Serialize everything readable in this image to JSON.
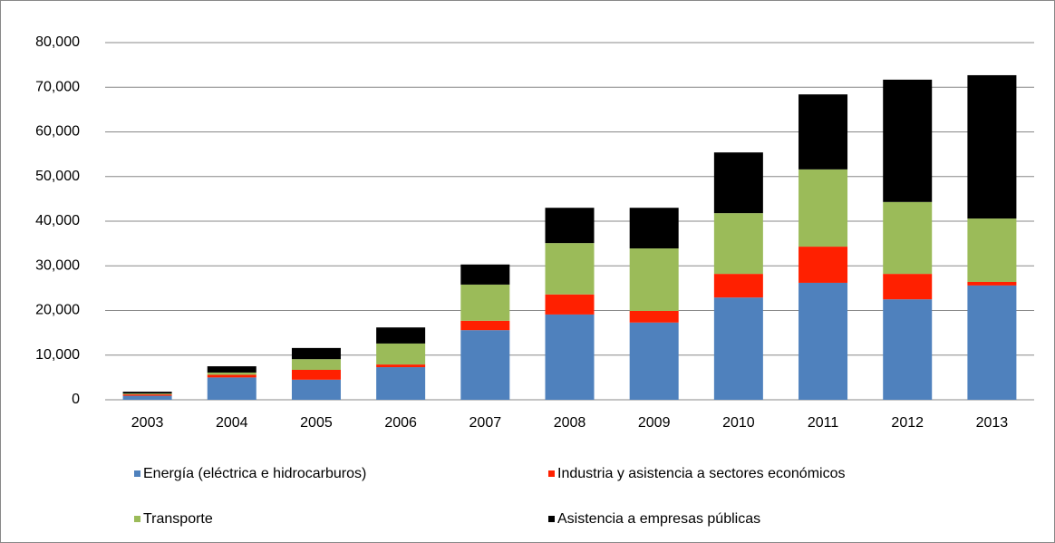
{
  "chart_data": {
    "type": "stacked-bar",
    "categories": [
      "2003",
      "2004",
      "2005",
      "2006",
      "2007",
      "2008",
      "2009",
      "2010",
      "2011",
      "2012",
      "2013"
    ],
    "series": [
      {
        "name": "Energía (eléctrica e hidrocarburos)",
        "color": "#4f81bd",
        "values": [
          900,
          5000,
          4500,
          7300,
          15600,
          19100,
          17300,
          22900,
          26200,
          22500,
          25600
        ]
      },
      {
        "name": "Industria y asistencia a sectores económicos",
        "color": "#ff2000",
        "values": [
          300,
          600,
          2200,
          600,
          2100,
          4500,
          2600,
          5300,
          8100,
          5700,
          800
        ]
      },
      {
        "name": "Transporte",
        "color": "#9bbb59",
        "values": [
          200,
          500,
          2400,
          4700,
          8100,
          11500,
          14000,
          13600,
          17300,
          16100,
          14200
        ]
      },
      {
        "name": "Asistencia a empresas públicas",
        "color": "#000000",
        "values": [
          400,
          1400,
          2500,
          3600,
          4500,
          7900,
          9100,
          13600,
          16800,
          27400,
          32100
        ]
      }
    ],
    "ylim": [
      0,
      80000
    ],
    "yticks": [
      0,
      {
        "value": 10000,
        "label": "10,000"
      },
      {
        "value": 20000,
        "label": "20,000"
      },
      {
        "value": 30000,
        "label": "30,000"
      },
      {
        "value": 40000,
        "label": "40,000"
      },
      {
        "value": 50000,
        "label": "50,000"
      },
      {
        "value": 60000,
        "label": "60,000"
      },
      {
        "value": 70000,
        "label": "70,000"
      },
      {
        "value": 80000,
        "label": "80,000"
      }
    ],
    "grid": true
  }
}
